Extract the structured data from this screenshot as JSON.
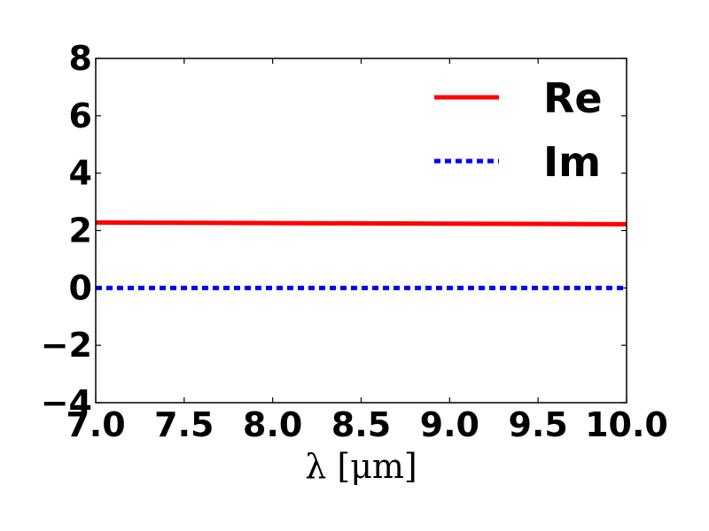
{
  "chart_data": {
    "type": "line",
    "title": "",
    "xlabel": "λ [μm]",
    "ylabel": "",
    "xlim": [
      7.0,
      10.0
    ],
    "ylim": [
      -4,
      8
    ],
    "x_ticks": [
      7.0,
      7.5,
      8.0,
      8.5,
      9.0,
      9.5,
      10.0
    ],
    "x_tick_labels": [
      "7.0",
      "7.5",
      "8.0",
      "8.5",
      "9.0",
      "9.5",
      "10.0"
    ],
    "y_ticks": [
      -4,
      -2,
      0,
      2,
      4,
      6,
      8
    ],
    "y_tick_labels": [
      "−4",
      "−2",
      "0",
      "2",
      "4",
      "6",
      "8"
    ],
    "grid": false,
    "legend_position": "top-right",
    "series": [
      {
        "name": "Re",
        "color": "#ff0000",
        "style": "solid",
        "x": [
          7.0,
          7.5,
          8.0,
          8.5,
          9.0,
          9.5,
          10.0
        ],
        "y": [
          2.28,
          2.27,
          2.26,
          2.25,
          2.24,
          2.23,
          2.22
        ]
      },
      {
        "name": "Im",
        "color": "#0000ff",
        "style": "dotted",
        "x": [
          7.0,
          7.5,
          8.0,
          8.5,
          9.0,
          9.5,
          10.0
        ],
        "y": [
          0.0,
          0.0,
          0.0,
          0.0,
          0.0,
          0.0,
          0.0
        ]
      }
    ]
  }
}
